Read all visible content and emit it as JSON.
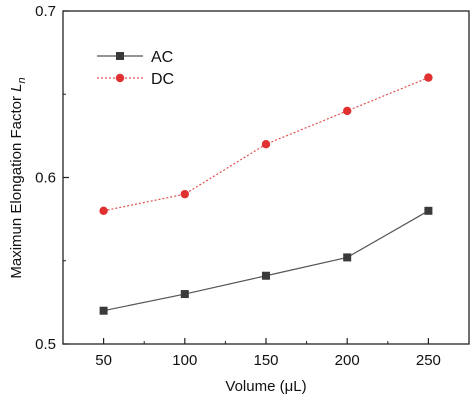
{
  "chart_data": {
    "type": "line",
    "title": "",
    "xlabel": "Volume (μL)",
    "ylabel": {
      "text": "Maximun Elongation Factor ",
      "symbol": "L",
      "subscript": "n"
    },
    "x": [
      50,
      100,
      150,
      200,
      250
    ],
    "xlim": [
      25,
      275
    ],
    "ylim": [
      0.5,
      0.7
    ],
    "xticks": [
      "50",
      "100",
      "150",
      "200",
      "250"
    ],
    "yticks": [
      "0.5",
      "0.6",
      "0.7"
    ],
    "grid": false,
    "legend_position": "top-left",
    "series": [
      {
        "name": "AC",
        "values": [
          0.52,
          0.53,
          0.541,
          0.552,
          0.58
        ],
        "color": "#555555",
        "marker_color": "#3a3a3a",
        "marker": "square",
        "line_style": "solid"
      },
      {
        "name": "DC",
        "values": [
          0.58,
          0.59,
          0.62,
          0.64,
          0.66
        ],
        "color": "#e05050",
        "marker_color": "#e03030",
        "marker": "circle",
        "line_style": "dotted"
      }
    ]
  }
}
